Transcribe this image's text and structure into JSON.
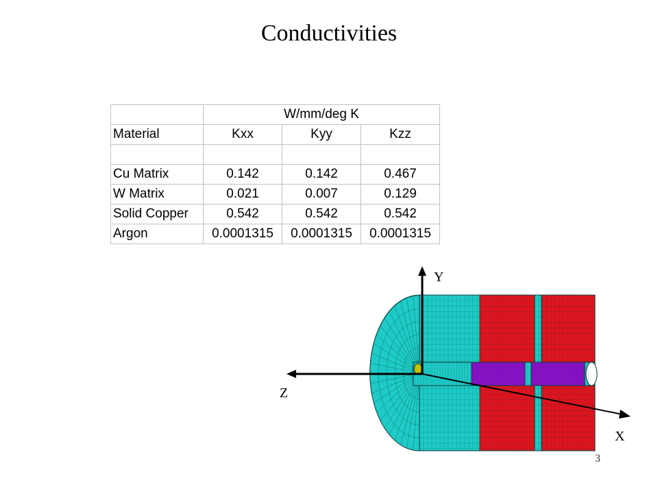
{
  "slide": {
    "title": "Conductivities",
    "page_number": "3"
  },
  "table": {
    "unit_header": "W/mm/deg K",
    "header": [
      "Material",
      "Kxx",
      "Kyy",
      "Kzz"
    ],
    "rows": [
      [
        "Cu Matrix",
        "0.142",
        "0.142",
        "0.467"
      ],
      [
        "W Matrix",
        "0.021",
        "0.007",
        "0.129"
      ],
      [
        "Solid Copper",
        "0.542",
        "0.542",
        "0.542"
      ],
      [
        "Argon",
        "0.0001315",
        "0.0001315",
        "0.0001315"
      ]
    ]
  },
  "figure": {
    "axes": {
      "x": "X",
      "y": "Y",
      "z": "Z"
    },
    "colors": {
      "cyan": "#1ecbc6",
      "red": "#e0141e",
      "purple": "#8a10c8",
      "mesh": "#0a3a3a",
      "axis": "#000000"
    }
  }
}
